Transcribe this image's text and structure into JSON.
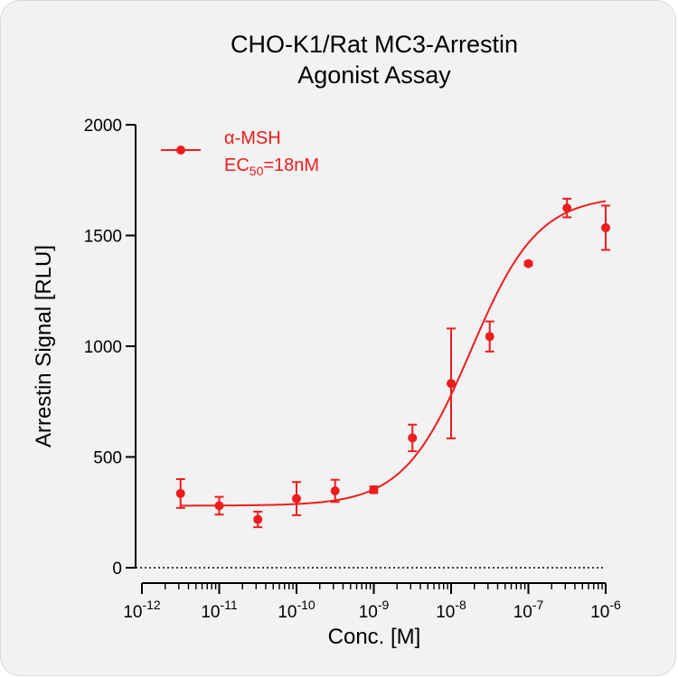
{
  "chart_data": {
    "type": "scatter",
    "title_line1": "CHO-K1/Rat MC3-Arrestin",
    "title_line2": "Agonist Assay",
    "xlabel": "Conc. [M]",
    "ylabel": "Arrestin Signal [RLU]",
    "x_scale": "log",
    "x_range": [
      1e-12,
      1e-06
    ],
    "y_range": [
      0,
      2000
    ],
    "y_ticks": [
      0,
      500,
      1000,
      1500,
      2000
    ],
    "x_ticks": [
      {
        "value": 1e-12,
        "base": "10",
        "exp": "-12"
      },
      {
        "value": 1e-11,
        "base": "10",
        "exp": "-11"
      },
      {
        "value": 1e-10,
        "base": "10",
        "exp": "-10"
      },
      {
        "value": 1e-09,
        "base": "10",
        "exp": "-9"
      },
      {
        "value": 1e-08,
        "base": "10",
        "exp": "-8"
      },
      {
        "value": 1e-07,
        "base": "10",
        "exp": "-7"
      },
      {
        "value": 1e-06,
        "base": "10",
        "exp": "-6"
      }
    ],
    "zero_line": "dotted",
    "color": "#ee1c1c",
    "legend_position": "top-left",
    "series": [
      {
        "name": "α-MSH",
        "ec50_label_prefix": "EC",
        "ec50_label_sub": "50",
        "ec50_label_suffix": "=18nM",
        "points": [
          {
            "x": 3.16e-12,
            "y": 335,
            "err": 65
          },
          {
            "x": 1e-11,
            "y": 280,
            "err": 40
          },
          {
            "x": 3.16e-11,
            "y": 218,
            "err": 35
          },
          {
            "x": 1e-10,
            "y": 312,
            "err": 75
          },
          {
            "x": 3.16e-10,
            "y": 347,
            "err": 50
          },
          {
            "x": 1e-09,
            "y": 352,
            "err": 15
          },
          {
            "x": 3.16e-09,
            "y": 586,
            "err": 60
          },
          {
            "x": 1e-08,
            "y": 832,
            "err": 248
          },
          {
            "x": 3.16e-08,
            "y": 1044,
            "err": 68
          },
          {
            "x": 1e-07,
            "y": 1373,
            "err": 8
          },
          {
            "x": 3.16e-07,
            "y": 1624,
            "err": 42
          },
          {
            "x": 1e-06,
            "y": 1535,
            "err": 100
          }
        ],
        "fit": {
          "model": "4PL",
          "bottom": 280,
          "top": 1680,
          "ec50": 1.8e-08,
          "hill": 1.0
        }
      }
    ]
  }
}
